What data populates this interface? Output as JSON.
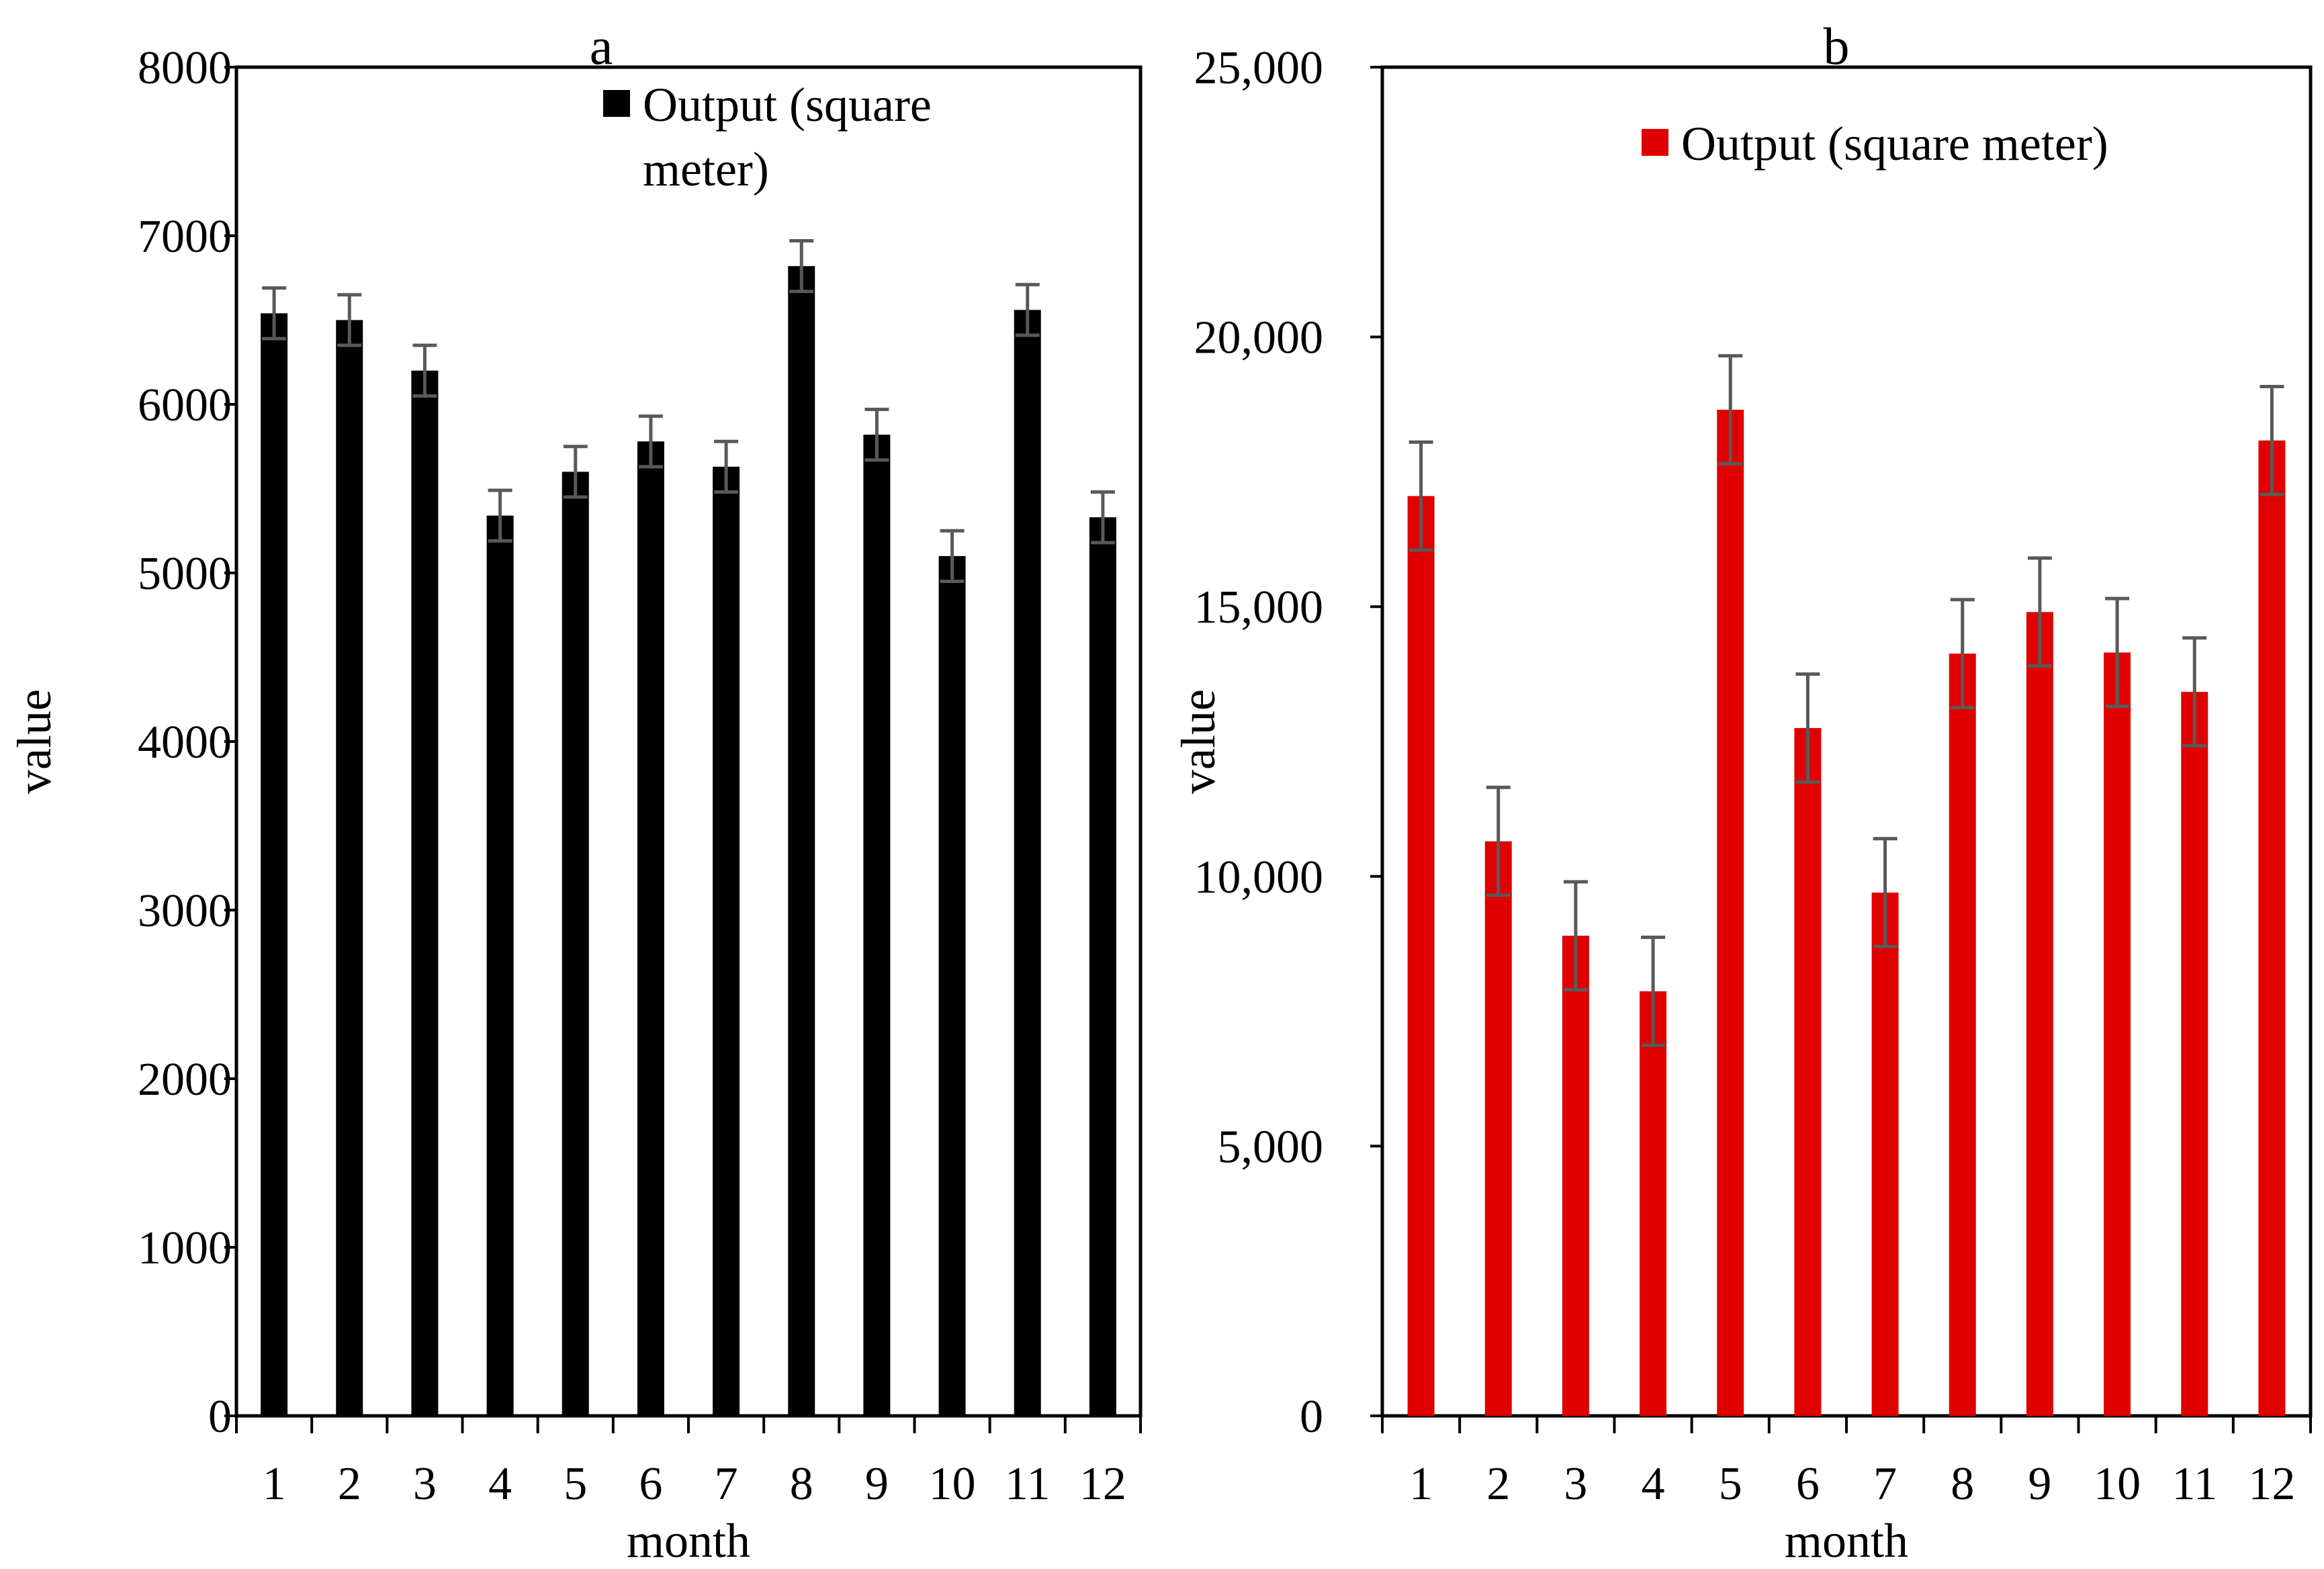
{
  "chart_data": [
    {
      "type": "bar",
      "panel_id": "a",
      "title": "a",
      "xlabel": "month",
      "ylabel": "value",
      "categories": [
        "1",
        "2",
        "3",
        "4",
        "5",
        "6",
        "7",
        "8",
        "9",
        "10",
        "11",
        "12"
      ],
      "series": [
        {
          "name": "Output (square meter)",
          "legend_lines": [
            "Output (square",
            "meter)"
          ],
          "color": "#000000",
          "values": [
            6540,
            6500,
            6200,
            5340,
            5600,
            5780,
            5630,
            6820,
            5820,
            5100,
            6560,
            5330
          ],
          "error": 150
        }
      ],
      "ylim": [
        0,
        8000
      ],
      "yticks": [
        0,
        1000,
        2000,
        3000,
        4000,
        5000,
        6000,
        7000,
        8000
      ],
      "ytick_labels": [
        "0",
        "1000",
        "2000",
        "3000",
        "4000",
        "5000",
        "6000",
        "7000",
        "8000"
      ],
      "legend_position": "top-center",
      "error_bar_color": "#595959"
    },
    {
      "type": "bar",
      "panel_id": "b",
      "title": "b",
      "xlabel": "month",
      "ylabel": "value",
      "categories": [
        "1",
        "2",
        "3",
        "4",
        "5",
        "6",
        "7",
        "8",
        "9",
        "10",
        "11",
        "12"
      ],
      "series": [
        {
          "name": "Output (square meter)",
          "legend_lines": [
            "Output (square meter)"
          ],
          "color": "#e00000",
          "values": [
            17050,
            10650,
            8900,
            7870,
            18650,
            12750,
            9700,
            14130,
            14900,
            14150,
            13420,
            18080
          ],
          "error": 1000
        }
      ],
      "ylim": [
        0,
        25000
      ],
      "yticks": [
        0,
        5000,
        10000,
        15000,
        20000,
        25000
      ],
      "ytick_labels": [
        "0",
        "5,000",
        "10,000",
        "15,000",
        "20,000",
        "25,000"
      ],
      "legend_position": "top-center",
      "error_bar_color": "#595959"
    }
  ]
}
